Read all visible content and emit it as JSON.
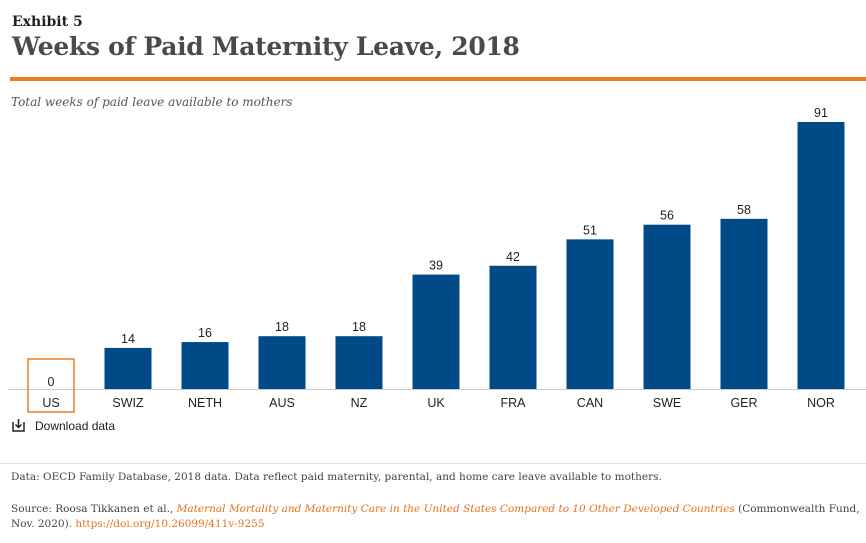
{
  "header": {
    "exhibit": "Exhibit 5",
    "title": "Weeks of Paid Maternity Leave, 2018",
    "subtitle": "Total weeks of paid leave available to mothers"
  },
  "colors": {
    "accent": "#ef7d22",
    "bar": "#004b87",
    "highlight_outline": "#ef7d22"
  },
  "chart_data": {
    "type": "bar",
    "title": "Weeks of Paid Maternity Leave, 2018",
    "ylabel": "Total weeks of paid leave available to mothers",
    "categories": [
      "US",
      "SWIZ",
      "NETH",
      "AUS",
      "NZ",
      "UK",
      "FRA",
      "CAN",
      "SWE",
      "GER",
      "NOR"
    ],
    "values": [
      0,
      14,
      16,
      18,
      18,
      39,
      42,
      51,
      56,
      58,
      91
    ],
    "data_labels": [
      "0",
      "14",
      "16",
      "18",
      "18",
      "39",
      "42",
      "51",
      "56",
      "58",
      "91"
    ],
    "highlighted_category": "US",
    "ylim": [
      0,
      91
    ],
    "grid": false,
    "legend": "none"
  },
  "actions": {
    "download_label": "Download data",
    "download_icon": "download-icon"
  },
  "footer": {
    "note": "Data: OECD Family Database, 2018 data. Data reflect paid maternity, parental, and home care leave available to mothers.",
    "source_prefix": "Source: Roosa Tikkanen et al., ",
    "source_link_title": "Maternal Mortality and Maternity Care in the United States Compared to 10 Other Developed Countries",
    "source_suffix": " (Commonwealth Fund, Nov. 2020). ",
    "source_doi": "https://doi.org/10.26099/411v-9255"
  }
}
